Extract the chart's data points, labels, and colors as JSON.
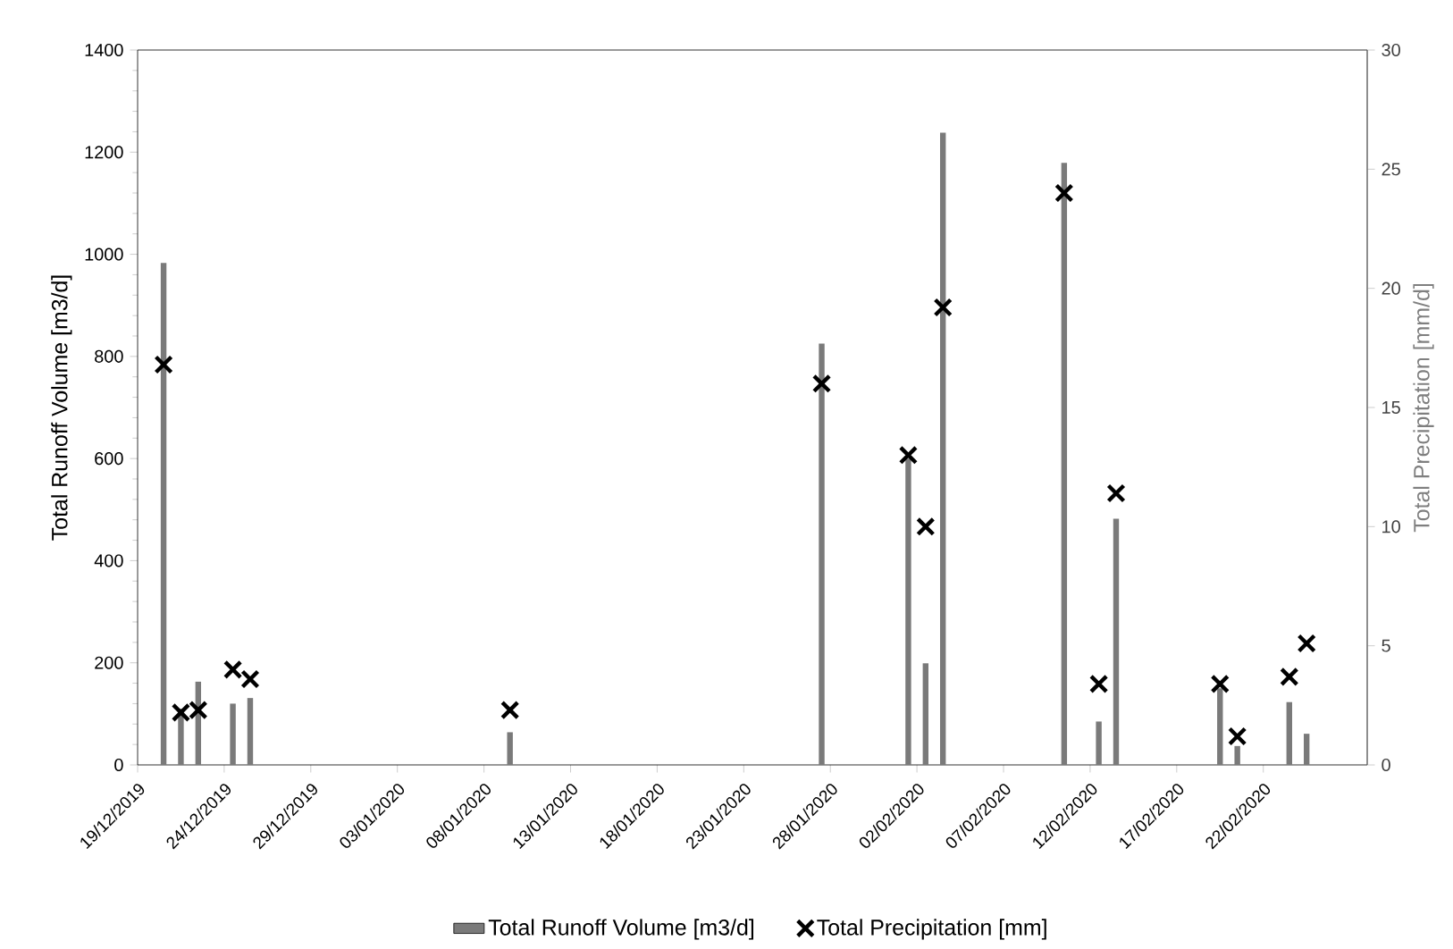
{
  "chart_data": {
    "type": "bar",
    "ylabel": "Total Runoff Volume [m3/d]",
    "y2label": "Total Precipitation [mm/d]",
    "xlim": [
      "2019-12-19",
      "2020-02-28"
    ],
    "xticks": [
      {
        "value": "2019-12-19",
        "label": "19/12/2019"
      },
      {
        "value": "2019-12-24",
        "label": "24/12/2019"
      },
      {
        "value": "2019-12-29",
        "label": "29/12/2019"
      },
      {
        "value": "2020-01-03",
        "label": "03/01/2020"
      },
      {
        "value": "2020-01-08",
        "label": "08/01/2020"
      },
      {
        "value": "2020-01-13",
        "label": "13/01/2020"
      },
      {
        "value": "2020-01-18",
        "label": "18/01/2020"
      },
      {
        "value": "2020-01-23",
        "label": "23/01/2020"
      },
      {
        "value": "2020-01-28",
        "label": "28/01/2020"
      },
      {
        "value": "2020-02-02",
        "label": "02/02/2020"
      },
      {
        "value": "2020-02-07",
        "label": "07/02/2020"
      },
      {
        "value": "2020-02-12",
        "label": "12/02/2020"
      },
      {
        "value": "2020-02-17",
        "label": "17/02/2020"
      },
      {
        "value": "2020-02-22",
        "label": "22/02/2020"
      }
    ],
    "ylim": [
      0,
      1400
    ],
    "yticks": [
      0,
      200,
      400,
      600,
      800,
      1000,
      1200,
      1400
    ],
    "y2lim": [
      0,
      30
    ],
    "y2ticks": [
      0,
      5,
      10,
      15,
      20,
      25,
      30
    ],
    "legend": "bottom",
    "grid": false,
    "series": [
      {
        "name": "Total Runoff Volume [m3/d]",
        "color": "#7a7a7a",
        "x": [
          "2019-12-20T12:00",
          "2019-12-21T12:00",
          "2019-12-22T12:00",
          "2019-12-24T12:00",
          "2019-12-25T12:00",
          "2020-01-09T12:00",
          "2020-01-27T12:00",
          "2020-02-01T12:00",
          "2020-02-02T12:00",
          "2020-02-03T12:00",
          "2020-02-10T12:00",
          "2020-02-12T12:00",
          "2020-02-13T12:00",
          "2020-02-19T12:00",
          "2020-02-20T12:00",
          "2020-02-23T12:00",
          "2020-02-24T12:00"
        ],
        "values": [
          983,
          110,
          163,
          120,
          131,
          64,
          825,
          600,
          199,
          1238,
          1179,
          85,
          482,
          150,
          37,
          123,
          61
        ]
      },
      {
        "name": "Total Precipitation [mm]",
        "type": "scatter",
        "axis": "y2",
        "marker": "cross",
        "color": "#000000",
        "x": [
          "2019-12-20T12:00",
          "2019-12-21T12:00",
          "2019-12-22T12:00",
          "2019-12-24T12:00",
          "2019-12-25T12:00",
          "2020-01-09T12:00",
          "2020-01-27T12:00",
          "2020-02-01T12:00",
          "2020-02-02T12:00",
          "2020-02-03T12:00",
          "2020-02-10T12:00",
          "2020-02-12T12:00",
          "2020-02-13T12:00",
          "2020-02-19T12:00",
          "2020-02-20T12:00",
          "2020-02-23T12:00",
          "2020-02-24T12:00"
        ],
        "values": [
          16.8,
          2.2,
          2.3,
          4.0,
          3.6,
          2.3,
          16.0,
          13.0,
          10.0,
          19.2,
          24.0,
          3.4,
          11.4,
          3.4,
          1.2,
          3.7,
          5.1
        ]
      }
    ]
  }
}
